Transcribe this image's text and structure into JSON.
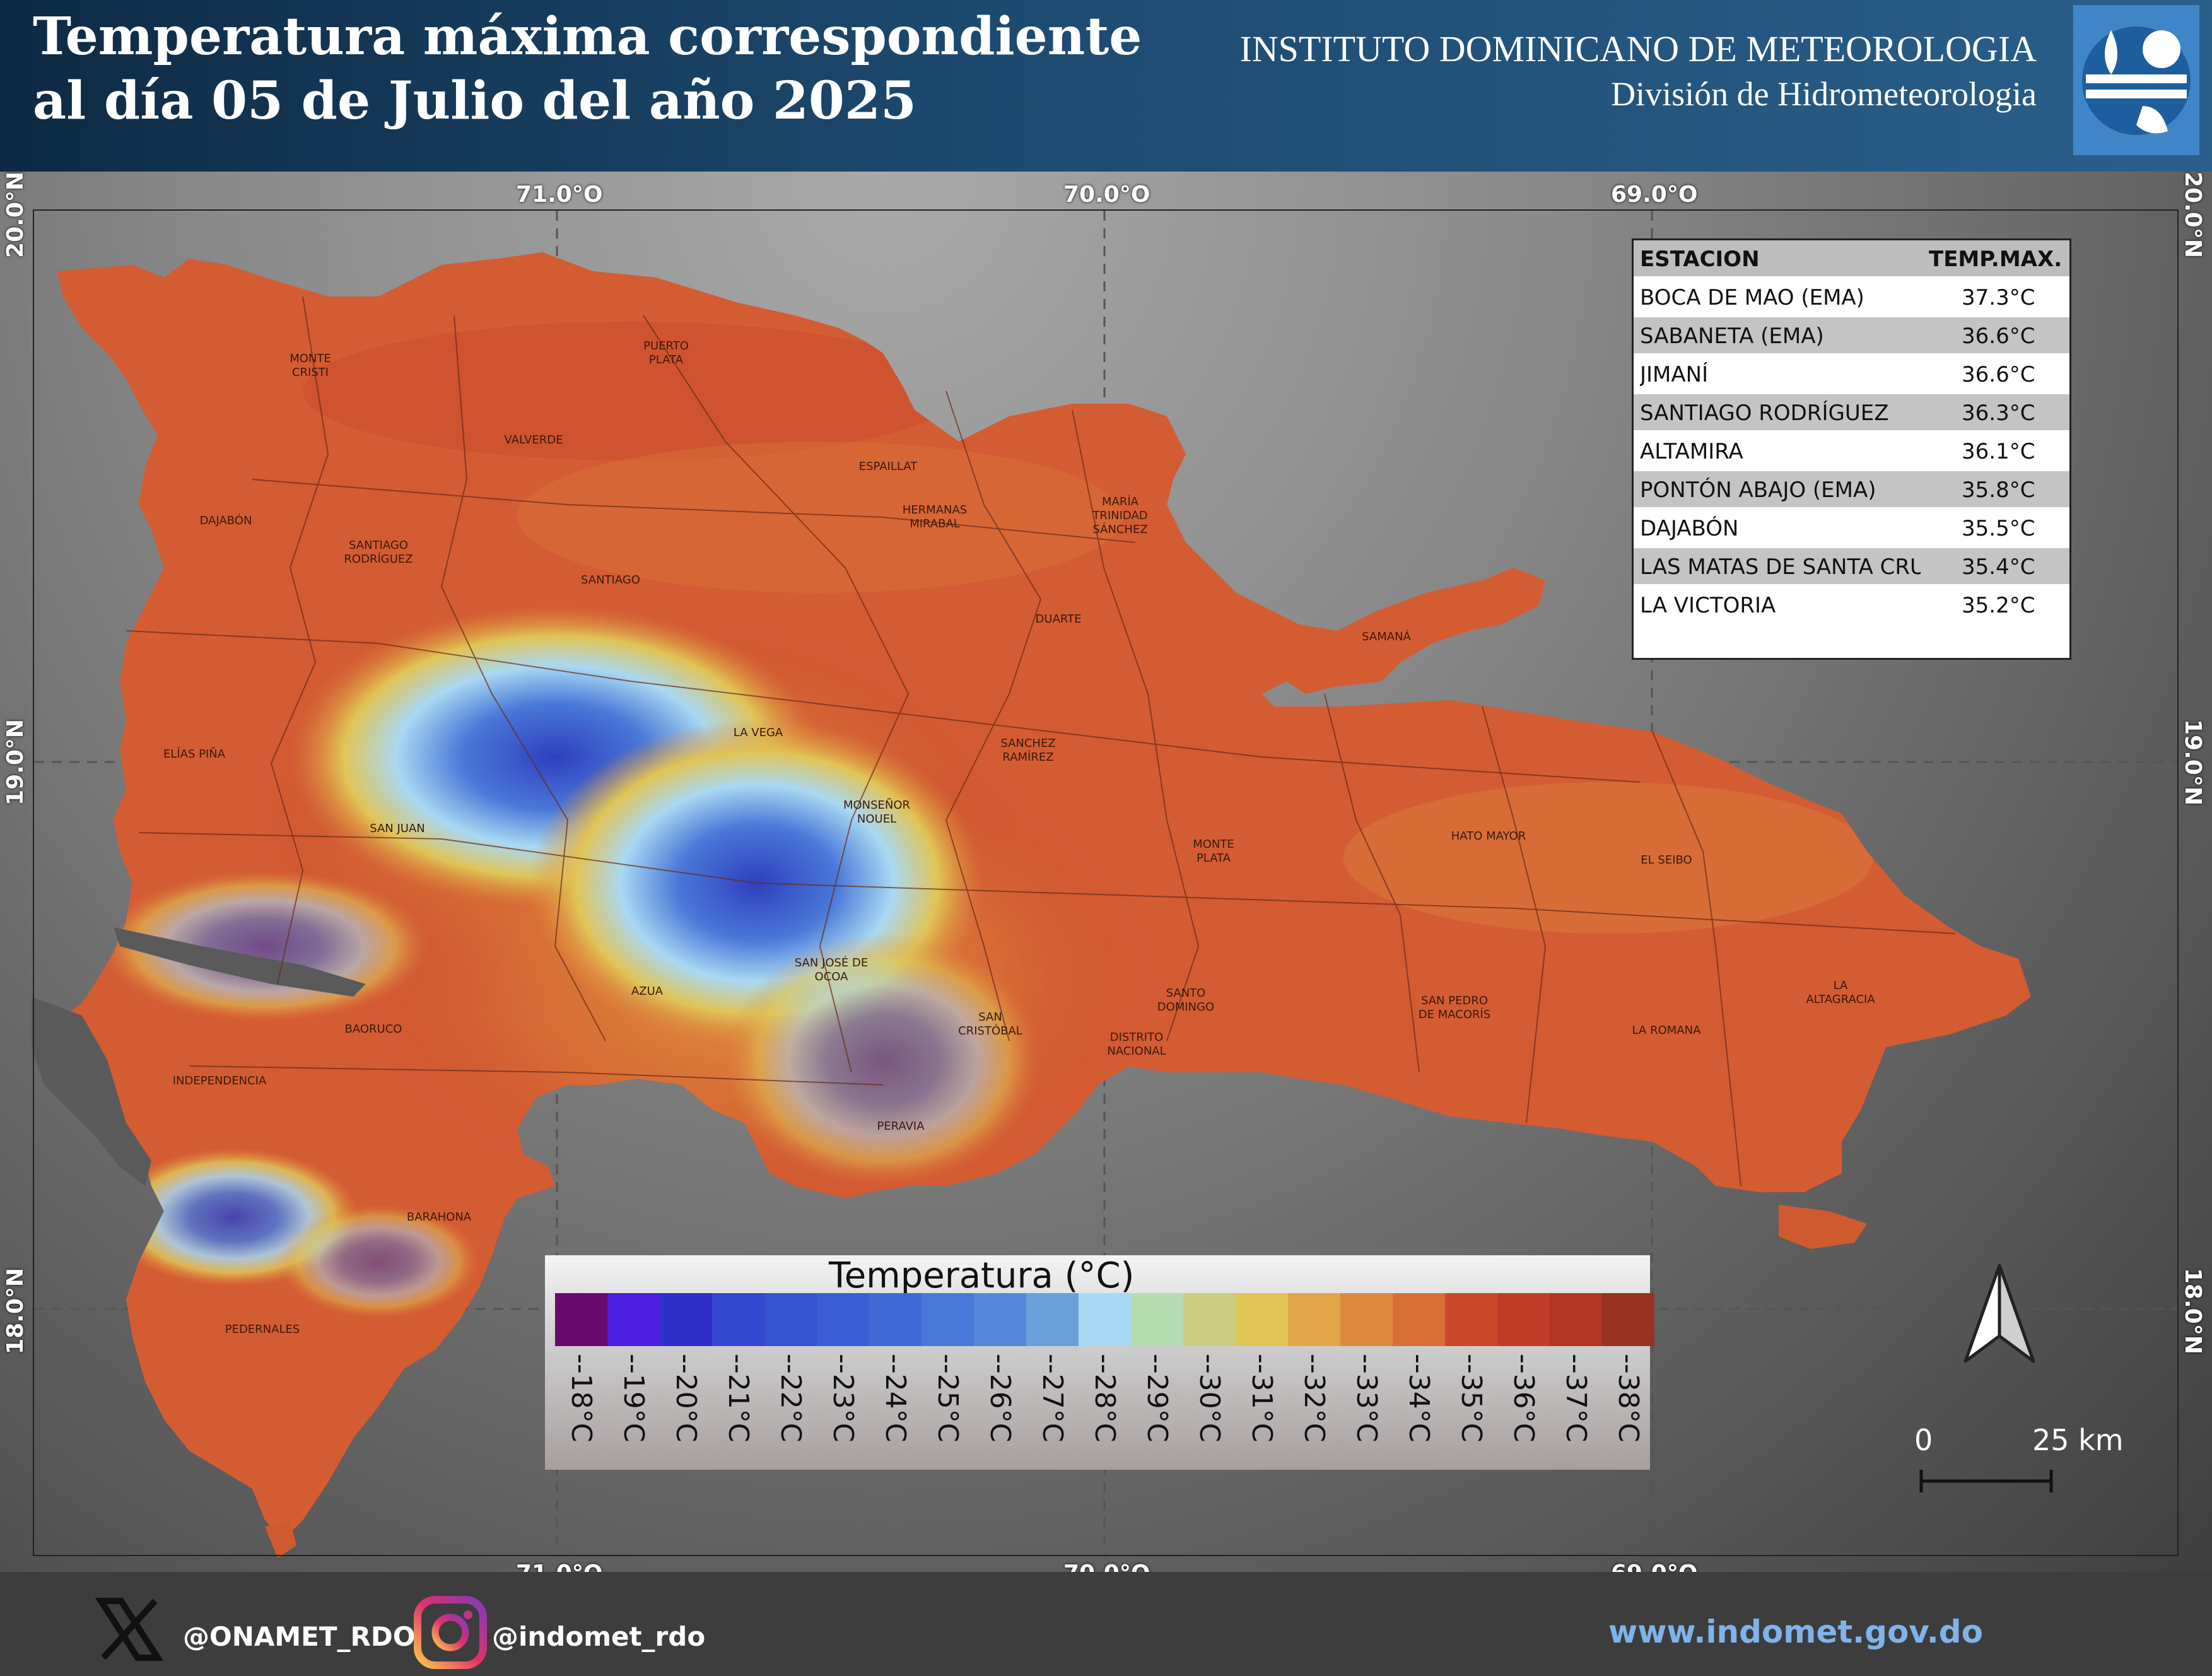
{
  "header": {
    "title_line1": "Temperatura máxima correspondiente",
    "title_line2": "al día 05 de Julio del año 2025",
    "institute": "INSTITUTO DOMINICANO DE METEOROLOGIA",
    "division": "División de Hidrometeorologia",
    "logo_icon": "indomet-logo-icon"
  },
  "map": {
    "lon_labels": [
      "71.0°O",
      "70.0°O",
      "69.0°O"
    ],
    "lat_labels": [
      "20.0°N",
      "19.0°N",
      "18.0°N"
    ],
    "provinces": [
      {
        "name": "MONTE\nCRISTI"
      },
      {
        "name": "PUERTO\nPLATA"
      },
      {
        "name": "VALVERDE"
      },
      {
        "name": "ESPAILLAT"
      },
      {
        "name": "HERMANAS\nMIRABAL"
      },
      {
        "name": "MARÍA\nTRINIDAD\nSÁNCHEZ"
      },
      {
        "name": "DAJABÓN"
      },
      {
        "name": "SANTIAGO\nRODRÍGUEZ"
      },
      {
        "name": "SANTIAGO"
      },
      {
        "name": "DUARTE"
      },
      {
        "name": "SAMANÁ"
      },
      {
        "name": "LA VEGA"
      },
      {
        "name": "SANCHEZ\nRAMÍREZ"
      },
      {
        "name": "ELÍAS PIÑA"
      },
      {
        "name": "MONSEÑOR\nNOUEL"
      },
      {
        "name": "SAN JUAN"
      },
      {
        "name": "MONTE\nPLATA"
      },
      {
        "name": "HATO MAYOR"
      },
      {
        "name": "EL SEIBO"
      },
      {
        "name": "SAN JOSÉ DE\nOCOA"
      },
      {
        "name": "AZUA"
      },
      {
        "name": "SAN\nCRISTÓBAL"
      },
      {
        "name": "SANTO\nDOMINGO"
      },
      {
        "name": "DISTRITO\nNACIONAL"
      },
      {
        "name": "SAN PEDRO\nDE MACORÍS"
      },
      {
        "name": "LA\nALTAGRACIA"
      },
      {
        "name": "LA ROMANA"
      },
      {
        "name": "BAORUCO"
      },
      {
        "name": "INDEPENDENCIA"
      },
      {
        "name": "PERAVIA"
      },
      {
        "name": "BARAHONA"
      },
      {
        "name": "PEDERNALES"
      }
    ]
  },
  "table": {
    "col_station": "ESTACION",
    "col_temp": "TEMP.MAX.",
    "rows": [
      {
        "station": "BOCA DE MAO (EMA)",
        "temp": "37.3°C"
      },
      {
        "station": "SABANETA (EMA)",
        "temp": "36.6°C"
      },
      {
        "station": "JIMANÍ",
        "temp": "36.6°C"
      },
      {
        "station": "SANTIAGO RODRÍGUEZ",
        "temp": "36.3°C"
      },
      {
        "station": "ALTAMIRA",
        "temp": "36.1°C"
      },
      {
        "station": "PONTÓN ABAJO (EMA)",
        "temp": "35.8°C"
      },
      {
        "station": "DAJABÓN",
        "temp": "35.5°C"
      },
      {
        "station": "LAS MATAS DE SANTA CRUZ",
        "temp": "35.4°C"
      },
      {
        "station": "LA VICTORIA",
        "temp": "35.2°C"
      }
    ]
  },
  "legend": {
    "title": "Temperatura (°C)",
    "items": [
      {
        "label": "--18°C",
        "color": "#6a0a6e"
      },
      {
        "label": "--19°C",
        "color": "#4b1ee0"
      },
      {
        "label": "--20°C",
        "color": "#2f30c8"
      },
      {
        "label": "--21°C",
        "color": "#3447d0"
      },
      {
        "label": "--22°C",
        "color": "#3552cf"
      },
      {
        "label": "--23°C",
        "color": "#3a5dd3"
      },
      {
        "label": "--24°C",
        "color": "#4069d6"
      },
      {
        "label": "--25°C",
        "color": "#4a78d8"
      },
      {
        "label": "--26°C",
        "color": "#5487d8"
      },
      {
        "label": "--27°C",
        "color": "#6a9fda"
      },
      {
        "label": "--28°C",
        "color": "#a9d8f2"
      },
      {
        "label": "--29°C",
        "color": "#b6dbb0"
      },
      {
        "label": "--30°C",
        "color": "#cccc80"
      },
      {
        "label": "--31°C",
        "color": "#e0c456"
      },
      {
        "label": "--32°C",
        "color": "#e2a64a"
      },
      {
        "label": "--33°C",
        "color": "#dd8a3e"
      },
      {
        "label": "--34°C",
        "color": "#d86f36"
      },
      {
        "label": "--35°C",
        "color": "#c9492a"
      },
      {
        "label": "--36°C",
        "color": "#c13c26"
      },
      {
        "label": "--37°C",
        "color": "#b03524"
      },
      {
        "label": "--38°C",
        "color": "#983222"
      }
    ]
  },
  "scale": {
    "zero": "0",
    "distance": "25 km"
  },
  "compass_icon": "north-arrow-icon",
  "footer": {
    "x_handle": "@ONAMET_RDO",
    "instagram_handle": "@indomet_rdo",
    "website": "www.indomet.gov.do"
  }
}
